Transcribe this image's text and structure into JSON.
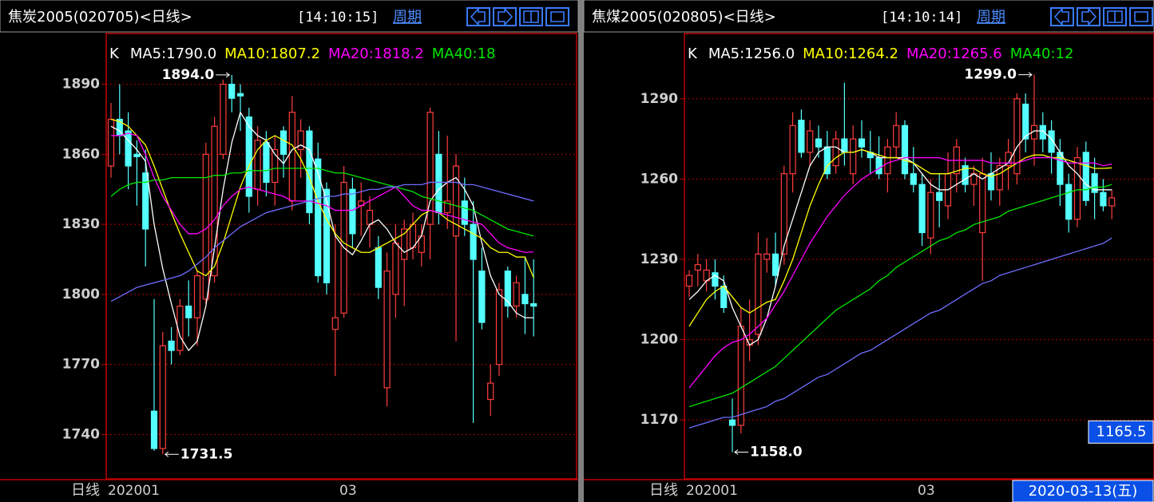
{
  "chart_data": [
    {
      "type": "candlestick",
      "title": "焦炭2005(020705)<日线>",
      "time": "[14:10:15]",
      "period_link": "周期",
      "k_label": "K",
      "open": [
        1855,
        1875,
        1870,
        1860,
        1852,
        1750,
        1734,
        1780,
        1776,
        1795,
        1790,
        1798,
        1808,
        1860,
        1890,
        1886,
        1876,
        1845,
        1865,
        1848,
        1870,
        1840,
        1862,
        1870,
        1858,
        1845,
        1785,
        1792,
        1845,
        1838,
        1830,
        1820,
        1760,
        1800,
        1815,
        1820,
        1818,
        1830,
        1860,
        1835,
        1825,
        1840,
        1830,
        1810,
        1755,
        1770,
        1810,
        1795,
        1800,
        1796
      ],
      "high": [
        1882,
        1890,
        1878,
        1866,
        1862,
        1798,
        1784,
        1786,
        1798,
        1806,
        1810,
        1865,
        1876,
        1892,
        1894,
        1890,
        1880,
        1872,
        1870,
        1868,
        1872,
        1885,
        1875,
        1872,
        1865,
        1848,
        1830,
        1855,
        1850,
        1848,
        1842,
        1825,
        1818,
        1830,
        1832,
        1835,
        1830,
        1880,
        1870,
        1868,
        1860,
        1850,
        1840,
        1820,
        1770,
        1805,
        1812,
        1808,
        1816,
        1815
      ],
      "low": [
        1850,
        1860,
        1845,
        1838,
        1812,
        1733,
        1731.5,
        1770,
        1774,
        1782,
        1778,
        1796,
        1805,
        1858,
        1878,
        1870,
        1835,
        1838,
        1842,
        1838,
        1850,
        1836,
        1850,
        1830,
        1805,
        1800,
        1765,
        1790,
        1820,
        1825,
        1820,
        1798,
        1752,
        1790,
        1795,
        1815,
        1812,
        1815,
        1830,
        1828,
        1780,
        1825,
        1745,
        1785,
        1748,
        1765,
        1790,
        1790,
        1783,
        1782
      ],
      "close": [
        1875,
        1868,
        1855,
        1859,
        1828,
        1734,
        1778,
        1776,
        1795,
        1790,
        1808,
        1860,
        1872,
        1890,
        1884,
        1885,
        1842,
        1866,
        1848,
        1862,
        1860,
        1878,
        1870,
        1835,
        1808,
        1805,
        1790,
        1848,
        1826,
        1840,
        1836,
        1803,
        1810,
        1822,
        1828,
        1830,
        1825,
        1878,
        1835,
        1840,
        1855,
        1830,
        1815,
        1788,
        1762,
        1802,
        1795,
        1805,
        1796,
        1795
      ],
      "up_color": "#ff3c3c",
      "down_color": "#54ffff",
      "series": [
        {
          "name": "MA5:1790.0",
          "color": "#ffffff",
          "values": [
            1872,
            1870,
            1866,
            1862,
            1857,
            1830,
            1811,
            1796,
            1782,
            1776,
            1780,
            1795,
            1820,
            1845,
            1865,
            1878,
            1872,
            1868,
            1866,
            1860,
            1856,
            1862,
            1864,
            1862,
            1852,
            1840,
            1825,
            1820,
            1817,
            1823,
            1830,
            1832,
            1828,
            1822,
            1818,
            1820,
            1825,
            1840,
            1845,
            1848,
            1850,
            1845,
            1838,
            1822,
            1808,
            1800,
            1797,
            1792,
            1790,
            1790
          ]
        },
        {
          "name": "MA10:1807.2",
          "color": "#ffff00",
          "values": [
            1875,
            1874,
            1872,
            1868,
            1864,
            1855,
            1845,
            1835,
            1826,
            1818,
            1810,
            1808,
            1812,
            1822,
            1834,
            1846,
            1855,
            1862,
            1866,
            1868,
            1866,
            1864,
            1858,
            1850,
            1840,
            1832,
            1826,
            1822,
            1820,
            1818,
            1818,
            1820,
            1822,
            1824,
            1826,
            1830,
            1834,
            1836,
            1835,
            1832,
            1830,
            1828,
            1826,
            1824,
            1820,
            1818,
            1818,
            1816,
            1816,
            1807.2
          ]
        },
        {
          "name": "MA20:1818.2",
          "color": "#ff00ff",
          "values": [
            1868,
            1868,
            1869,
            1868,
            1860,
            1850,
            1842,
            1836,
            1830,
            1826,
            1826,
            1828,
            1832,
            1838,
            1842,
            1845,
            1846,
            1845,
            1844,
            1843,
            1842,
            1840,
            1840,
            1840,
            1839,
            1838,
            1836,
            1836,
            1836,
            1838,
            1840,
            1842,
            1844,
            1846,
            1842,
            1838,
            1836,
            1836,
            1835,
            1834,
            1833,
            1832,
            1831,
            1830,
            1826,
            1822,
            1820,
            1819,
            1818,
            1818.2
          ]
        },
        {
          "name": "MA40:18",
          "color": "#00e600",
          "values": [
            1842,
            1845,
            1847,
            1848,
            1848,
            1849,
            1849,
            1850,
            1850,
            1850,
            1850,
            1850,
            1851,
            1851,
            1852,
            1852,
            1853,
            1853,
            1853,
            1854,
            1854,
            1854,
            1854,
            1854,
            1854,
            1853,
            1852,
            1852,
            1851,
            1850,
            1849,
            1848,
            1847,
            1846,
            1845,
            1844,
            1842,
            1841,
            1840,
            1839,
            1838,
            1837,
            1836,
            1834,
            1832,
            1830,
            1828,
            1827,
            1826,
            1825
          ]
        },
        {
          "color": "#6e6eff",
          "values": [
            1797,
            1799,
            1801,
            1803,
            1804,
            1805,
            1806,
            1807,
            1808,
            1810,
            1813,
            1816,
            1820,
            1823,
            1826,
            1829,
            1831,
            1833,
            1835,
            1836,
            1837,
            1838,
            1839,
            1840,
            1841,
            1842,
            1842,
            1843,
            1843,
            1844,
            1845,
            1845,
            1846,
            1846,
            1847,
            1847,
            1847,
            1848,
            1848,
            1848,
            1848,
            1847,
            1847,
            1846,
            1845,
            1844,
            1843,
            1842,
            1841,
            1840
          ]
        }
      ],
      "ylim": [
        1721,
        1909
      ],
      "yticks": [
        1740,
        1770,
        1800,
        1830,
        1860,
        1890
      ],
      "grid": true,
      "max_label": {
        "value": 1894,
        "label": "1894.0"
      },
      "min_label": {
        "value": 1731.5,
        "label": "1731.5"
      },
      "period": "日线",
      "x_labels": [
        "202001",
        "03"
      ]
    },
    {
      "type": "candlestick",
      "title": "焦煤2005(020805)<日线>",
      "time": "[14:10:14]",
      "period_link": "周期",
      "k_label": "K",
      "open": [
        1220,
        1226,
        1222,
        1225,
        1220,
        1170,
        1168,
        1198,
        1202,
        1230,
        1232,
        1232,
        1262,
        1282,
        1270,
        1275,
        1272,
        1265,
        1275,
        1262,
        1275,
        1270,
        1268,
        1262,
        1272,
        1280,
        1262,
        1258,
        1238,
        1255,
        1250,
        1262,
        1265,
        1258,
        1240,
        1262,
        1256,
        1265,
        1262,
        1288,
        1275,
        1280,
        1278,
        1270,
        1258,
        1245,
        1270,
        1262,
        1255,
        1250
      ],
      "high": [
        1226,
        1232,
        1230,
        1230,
        1224,
        1178,
        1212,
        1215,
        1240,
        1238,
        1240,
        1265,
        1285,
        1286,
        1282,
        1280,
        1278,
        1278,
        1296,
        1280,
        1282,
        1278,
        1276,
        1275,
        1285,
        1282,
        1272,
        1262,
        1260,
        1262,
        1270,
        1275,
        1268,
        1265,
        1268,
        1270,
        1268,
        1275,
        1292,
        1292,
        1299,
        1285,
        1282,
        1275,
        1262,
        1272,
        1274,
        1268,
        1260,
        1256
      ],
      "low": [
        1216,
        1220,
        1218,
        1215,
        1210,
        1158,
        1165,
        1192,
        1198,
        1225,
        1220,
        1228,
        1255,
        1268,
        1265,
        1268,
        1260,
        1262,
        1265,
        1258,
        1268,
        1262,
        1260,
        1255,
        1268,
        1260,
        1255,
        1235,
        1232,
        1242,
        1245,
        1255,
        1255,
        1250,
        1222,
        1252,
        1250,
        1256,
        1258,
        1270,
        1265,
        1270,
        1262,
        1250,
        1240,
        1242,
        1250,
        1245,
        1248,
        1245
      ],
      "close": [
        1224,
        1228,
        1226,
        1220,
        1212,
        1168,
        1205,
        1200,
        1232,
        1232,
        1224,
        1262,
        1280,
        1270,
        1278,
        1272,
        1262,
        1275,
        1270,
        1275,
        1272,
        1268,
        1262,
        1272,
        1280,
        1262,
        1258,
        1240,
        1255,
        1252,
        1262,
        1272,
        1258,
        1262,
        1262,
        1256,
        1265,
        1270,
        1290,
        1275,
        1280,
        1275,
        1270,
        1258,
        1245,
        1268,
        1252,
        1255,
        1250,
        1253
      ],
      "up_color": "#ff3c3c",
      "down_color": "#54ffff",
      "series": [
        {
          "name": "MA5:1256.0",
          "color": "#ffffff",
          "values": [
            1215,
            1218,
            1222,
            1224,
            1222,
            1212,
            1205,
            1198,
            1200,
            1208,
            1220,
            1235,
            1245,
            1255,
            1265,
            1270,
            1272,
            1272,
            1270,
            1270,
            1271,
            1270,
            1268,
            1268,
            1268,
            1268,
            1266,
            1262,
            1258,
            1256,
            1256,
            1258,
            1260,
            1262,
            1260,
            1262,
            1264,
            1266,
            1272,
            1276,
            1278,
            1278,
            1275,
            1270,
            1265,
            1262,
            1258,
            1256,
            1256,
            1256
          ]
        },
        {
          "name": "MA10:1264.2",
          "color": "#ffff00",
          "values": [
            1205,
            1210,
            1215,
            1218,
            1220,
            1216,
            1212,
            1210,
            1212,
            1214,
            1215,
            1222,
            1230,
            1240,
            1250,
            1258,
            1265,
            1268,
            1270,
            1270,
            1271,
            1270,
            1269,
            1268,
            1268,
            1267,
            1266,
            1264,
            1262,
            1262,
            1262,
            1263,
            1264,
            1264,
            1262,
            1261,
            1262,
            1264,
            1266,
            1268,
            1269,
            1269,
            1268,
            1268,
            1267,
            1266,
            1265,
            1264,
            1264,
            1264.2
          ]
        },
        {
          "name": "MA20:1265.6",
          "color": "#ff00ff",
          "values": [
            1182,
            1186,
            1190,
            1194,
            1197,
            1199,
            1200,
            1202,
            1205,
            1208,
            1213,
            1218,
            1224,
            1230,
            1236,
            1241,
            1246,
            1250,
            1254,
            1257,
            1260,
            1262,
            1264,
            1266,
            1267,
            1268,
            1268,
            1268,
            1268,
            1268,
            1267,
            1267,
            1267,
            1267,
            1267,
            1266,
            1266,
            1266,
            1266,
            1267,
            1268,
            1268,
            1268,
            1267,
            1266,
            1266,
            1266,
            1266,
            1265,
            1265.6
          ]
        },
        {
          "name": "MA40:12",
          "color": "#00e600",
          "values": [
            1175,
            1176,
            1177,
            1178,
            1179,
            1180,
            1182,
            1184,
            1186,
            1188,
            1190,
            1193,
            1196,
            1199,
            1202,
            1205,
            1208,
            1211,
            1213,
            1215,
            1217,
            1219,
            1222,
            1224,
            1227,
            1229,
            1231,
            1233,
            1235,
            1237,
            1238,
            1240,
            1241,
            1243,
            1244,
            1245,
            1246,
            1248,
            1249,
            1250,
            1251,
            1252,
            1253,
            1254,
            1255,
            1256,
            1256,
            1257,
            1257,
            1258
          ]
        },
        {
          "color": "#6e6eff",
          "values": [
            1167,
            1168,
            1169,
            1170,
            1171,
            1171,
            1172,
            1173,
            1174,
            1175,
            1177,
            1178,
            1180,
            1182,
            1184,
            1186,
            1187,
            1189,
            1191,
            1193,
            1195,
            1196,
            1198,
            1200,
            1202,
            1204,
            1206,
            1208,
            1210,
            1211,
            1213,
            1215,
            1217,
            1219,
            1221,
            1222,
            1224,
            1225,
            1226,
            1227,
            1228,
            1229,
            1230,
            1231,
            1232,
            1233,
            1234,
            1235,
            1236,
            1238
          ]
        }
      ],
      "ylim": [
        1148,
        1312
      ],
      "yticks": [
        1170,
        1200,
        1230,
        1260,
        1290
      ],
      "grid": true,
      "max_label": {
        "value": 1299,
        "label": "1299.0"
      },
      "min_label": {
        "value": 1158,
        "label": "1158.0"
      },
      "cursor_price": 1165.5,
      "cursor_date": "2020-03-13(五)",
      "period": "日线",
      "x_labels": [
        "202001",
        "03"
      ]
    }
  ]
}
